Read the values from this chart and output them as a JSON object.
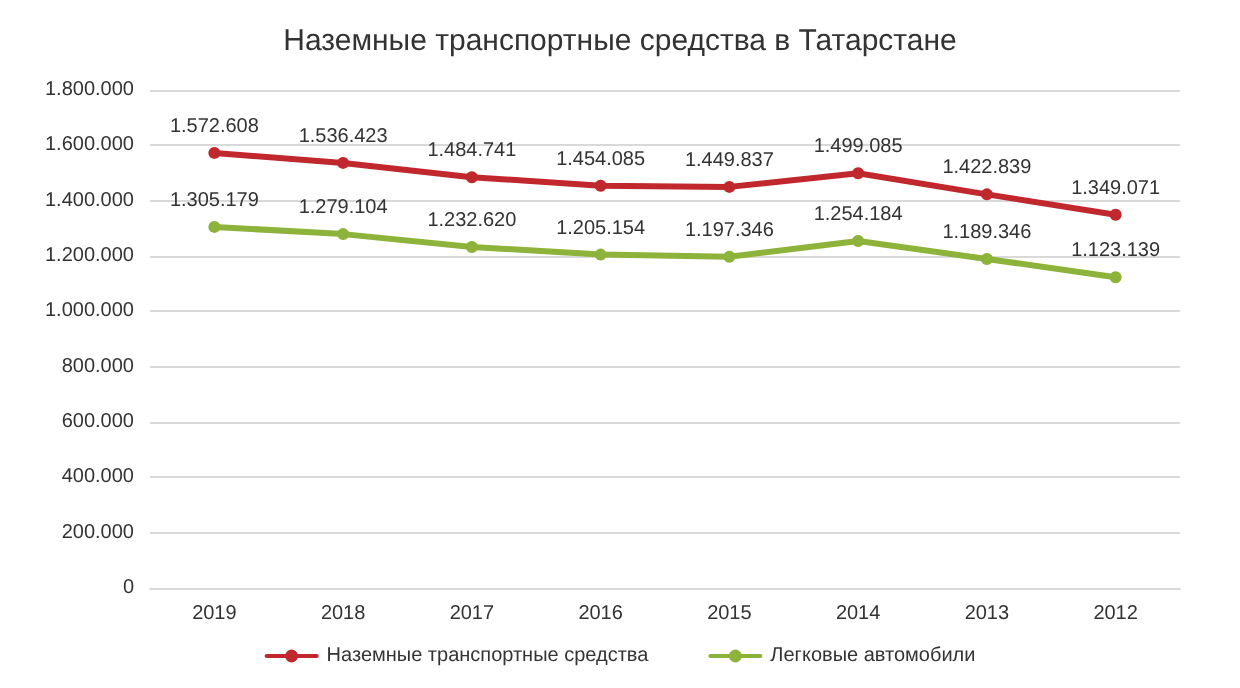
{
  "chart_data": {
    "type": "line",
    "title": "Наземные транспортные средства в Татарстане",
    "categories": [
      "2019",
      "2018",
      "2017",
      "2016",
      "2015",
      "2014",
      "2013",
      "2012"
    ],
    "series": [
      {
        "name": "Наземные транспортные средства",
        "color": "#c0282d",
        "values": [
          1572608,
          1536423,
          1484741,
          1454085,
          1449837,
          1499085,
          1422839,
          1349071
        ],
        "value_labels": [
          "1.572.608",
          "1.536.423",
          "1.484.741",
          "1.454.085",
          "1.449.837",
          "1.499.085",
          "1.422.839",
          "1.349.071"
        ]
      },
      {
        "name": "Легковые автомобили",
        "color": "#8db33a",
        "values": [
          1305179,
          1279104,
          1232620,
          1205154,
          1197346,
          1254184,
          1189346,
          1123139
        ],
        "value_labels": [
          "1.305.179",
          "1.279.104",
          "1.232.620",
          "1.205.154",
          "1.197.346",
          "1.254.184",
          "1.189.346",
          "1.123.139"
        ]
      }
    ],
    "ylim": [
      0,
      1800000
    ],
    "yticks": [
      {
        "value": 0,
        "label": "0"
      },
      {
        "value": 200000,
        "label": "200.000"
      },
      {
        "value": 400000,
        "label": "400.000"
      },
      {
        "value": 600000,
        "label": "600.000"
      },
      {
        "value": 800000,
        "label": "800.000"
      },
      {
        "value": 1000000,
        "label": "1.000.000"
      },
      {
        "value": 1200000,
        "label": "1.200.000"
      },
      {
        "value": 1400000,
        "label": "1.400.000"
      },
      {
        "value": 1600000,
        "label": "1.600.000"
      },
      {
        "value": 1800000,
        "label": "1.800.000"
      }
    ],
    "grid": "y",
    "legend": "bottom",
    "marker": "circle",
    "line_style": "solid"
  }
}
